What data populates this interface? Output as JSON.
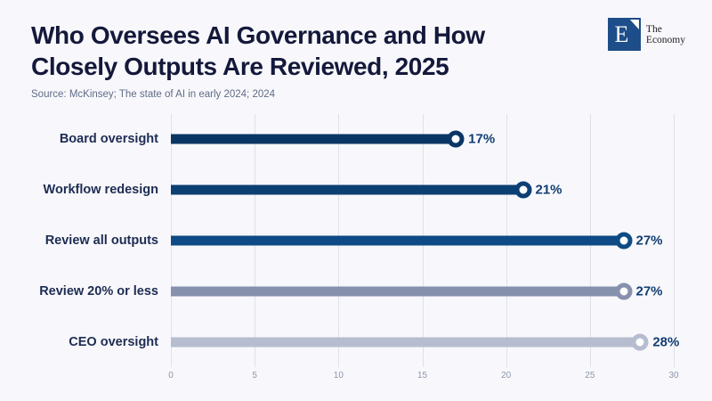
{
  "page": {
    "background_color": "#f8f8fc"
  },
  "header": {
    "title_line1": "Who Oversees AI Governance and How",
    "title_line2": "Closely Outputs Are Reviewed, 2025",
    "source": "Source: McKinsey; The state of AI in early 2024; 2024"
  },
  "logo": {
    "monogram": "E",
    "name_line1": "The",
    "name_line2": "Economy",
    "square_color": "#1d4e89"
  },
  "chart_data": {
    "type": "bar",
    "orientation": "horizontal",
    "style": "lollipop",
    "title": "Who Oversees AI Governance and How Closely Outputs Are Reviewed, 2025",
    "source": "Source: McKinsey; The state of AI in early 2024; 2024",
    "categories": [
      "Board oversight",
      "Workflow redesign",
      "Review all outputs",
      "Review 20% or less",
      "CEO oversight"
    ],
    "values": [
      17,
      21,
      27,
      27,
      28
    ],
    "value_labels": [
      "17%",
      "21%",
      "27%",
      "27%",
      "28%"
    ],
    "bar_colors": [
      "#0a3665",
      "#0c3f74",
      "#0e4a85",
      "#8591ad",
      "#b6bdce"
    ],
    "xlim": [
      0,
      30
    ],
    "x_ticks": [
      0,
      5,
      10,
      15,
      20,
      25,
      30
    ],
    "xlabel": "",
    "ylabel": "",
    "grid": "vertical-only",
    "gridline_color": "#dee1ea",
    "value_label_color": "#123e72",
    "category_label_color": "#1e2c53"
  }
}
